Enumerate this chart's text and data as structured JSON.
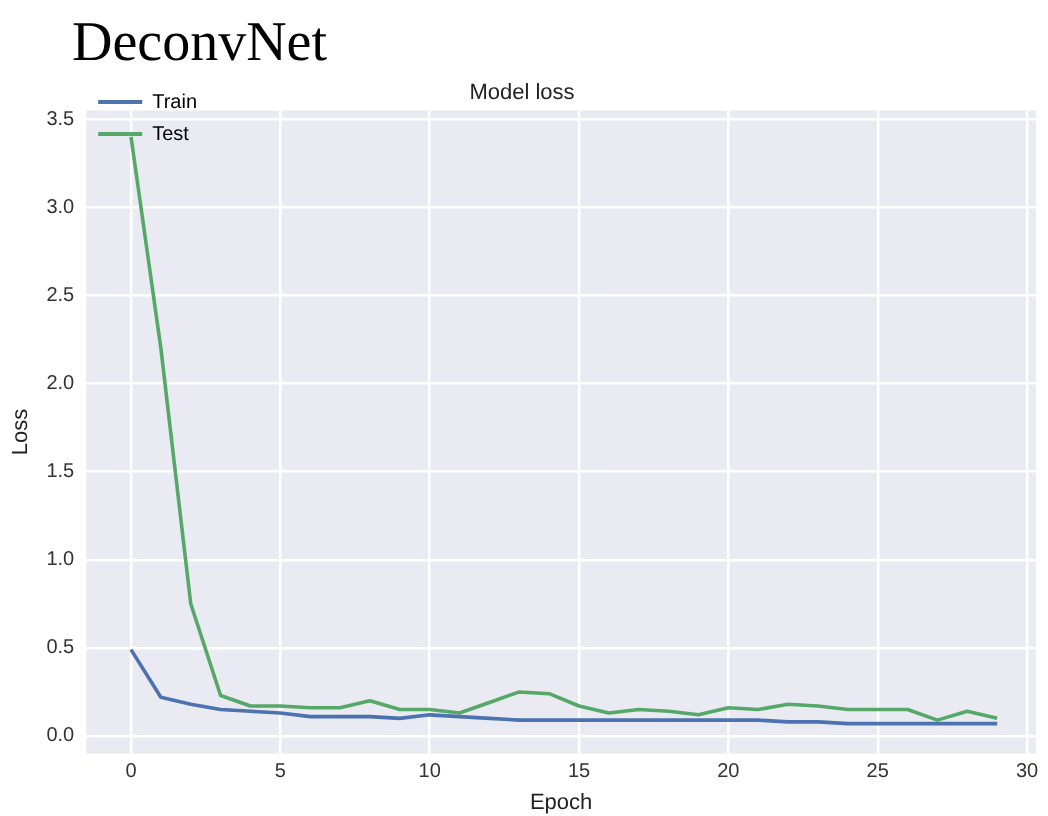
{
  "chart_data": {
    "type": "line",
    "title": "DeconvNet",
    "subtitle": "Model loss",
    "xlabel": "Epoch",
    "ylabel": "Loss",
    "x": [
      0,
      1,
      2,
      3,
      4,
      5,
      6,
      7,
      8,
      9,
      10,
      11,
      12,
      13,
      14,
      15,
      16,
      17,
      18,
      19,
      20,
      21,
      22,
      23,
      24,
      25,
      26,
      27,
      28,
      29
    ],
    "series": [
      {
        "name": "Train",
        "color": "#4c72b0",
        "values": [
          0.49,
          0.22,
          0.18,
          0.15,
          0.14,
          0.13,
          0.11,
          0.11,
          0.11,
          0.1,
          0.12,
          0.11,
          0.1,
          0.09,
          0.09,
          0.09,
          0.09,
          0.09,
          0.09,
          0.09,
          0.09,
          0.09,
          0.08,
          0.08,
          0.07,
          0.07,
          0.07,
          0.07,
          0.07,
          0.07
        ]
      },
      {
        "name": "Test",
        "color": "#55a868",
        "values": [
          3.4,
          2.2,
          0.75,
          0.23,
          0.17,
          0.17,
          0.16,
          0.16,
          0.2,
          0.15,
          0.15,
          0.13,
          0.19,
          0.25,
          0.24,
          0.17,
          0.13,
          0.15,
          0.14,
          0.12,
          0.16,
          0.15,
          0.18,
          0.17,
          0.15,
          0.15,
          0.15,
          0.09,
          0.14,
          0.1
        ]
      }
    ],
    "xlim": [
      -1.5,
      30.3
    ],
    "xticks": [
      0,
      5,
      10,
      15,
      20,
      25,
      30
    ],
    "ylim": [
      -0.1,
      3.55
    ],
    "yticks": [
      {
        "value": 0,
        "label": "0.0"
      },
      0.5,
      {
        "value": 1,
        "label": "1.0"
      },
      1.5,
      {
        "value": 2,
        "label": "2.0"
      },
      2.5,
      {
        "value": 3,
        "label": "3.0"
      },
      3.5
    ],
    "grid": true,
    "legend": "top left",
    "marker": "none",
    "line_style": "solid"
  }
}
